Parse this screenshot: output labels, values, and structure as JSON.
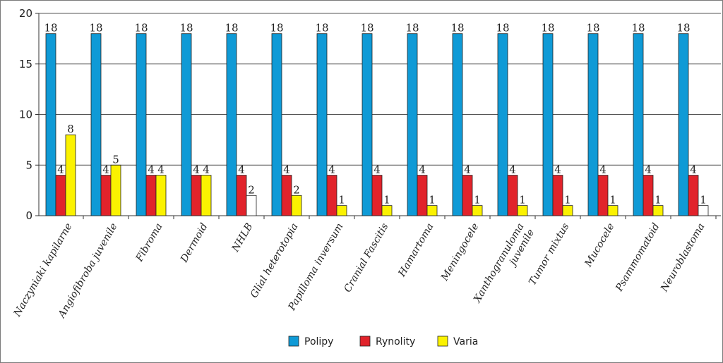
{
  "chart_data": {
    "type": "bar",
    "title": "",
    "xlabel": "",
    "ylabel": "",
    "ylim": [
      0,
      20
    ],
    "yticks": [
      0,
      5,
      10,
      15,
      20
    ],
    "grid": true,
    "legend_position": "bottom",
    "categories": [
      "Naczyniaki kapilarne",
      "Angiofibroba juvenile",
      "Fibroma",
      "Dermoid",
      "NHLB",
      "Glial heterotopia",
      "Papilloma inversum",
      "Cranial Fascitis",
      "Hamartoma",
      "Meningocele",
      [
        "Xanthogranuloma",
        "juvenile"
      ],
      "Tumor mixtus",
      "Mucocele",
      "Psammomatoid",
      "Neuroblastoma"
    ],
    "series": [
      {
        "name": "Polipy",
        "color": "#0f9ad6",
        "values": [
          18,
          18,
          18,
          18,
          18,
          18,
          18,
          18,
          18,
          18,
          18,
          18,
          18,
          18,
          18
        ]
      },
      {
        "name": "Rynolity",
        "color": "#e1232b",
        "values": [
          4,
          4,
          4,
          4,
          4,
          4,
          4,
          4,
          4,
          4,
          4,
          4,
          4,
          4,
          4
        ]
      },
      {
        "name": "Varia",
        "color": "#fbf200",
        "values": [
          8,
          5,
          4,
          4,
          2,
          2,
          1,
          1,
          1,
          1,
          1,
          1,
          1,
          1,
          1
        ]
      }
    ],
    "white_bar_categories": [
      4,
      14
    ]
  }
}
